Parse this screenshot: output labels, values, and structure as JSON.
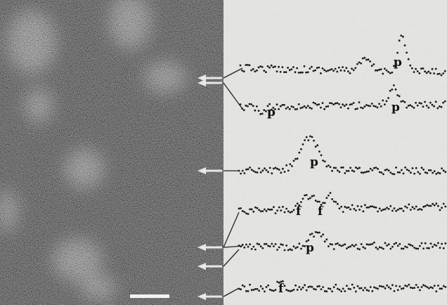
{
  "figure": {
    "traces": [
      {
        "labels": [
          "p"
        ]
      },
      {
        "labels": [
          "p",
          "p"
        ]
      },
      {
        "labels": [
          "p"
        ]
      },
      {
        "labels": [
          "f",
          "f"
        ]
      },
      {
        "labels": [
          "p"
        ]
      },
      {
        "labels": [
          "f"
        ]
      }
    ]
  }
}
